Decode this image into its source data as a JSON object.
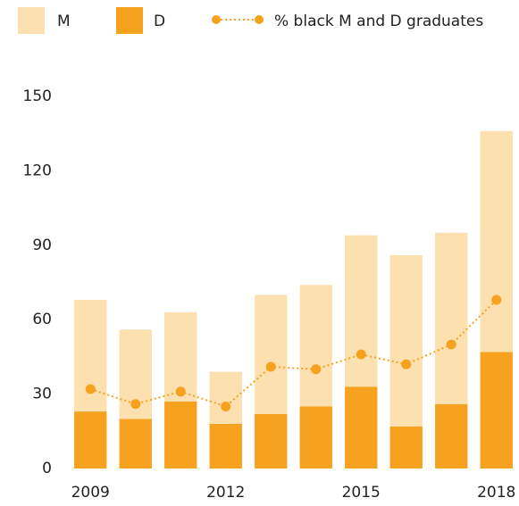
{
  "chart_data": {
    "type": "bar",
    "categories": [
      "2009",
      null,
      null,
      "2012",
      null,
      null,
      "2015",
      null,
      null,
      "2018"
    ],
    "series": [
      {
        "name": "D",
        "color": "#f7a21e",
        "values": [
          23,
          20,
          27,
          18,
          22,
          25,
          33,
          17,
          26,
          47
        ]
      },
      {
        "name": "M",
        "color": "#fde0b0",
        "values": [
          45,
          36,
          36,
          21,
          48,
          49,
          61,
          69,
          69,
          89
        ]
      },
      {
        "name": "% black M and D graduates",
        "type": "line",
        "color": "#f7a21e",
        "values": [
          32,
          26,
          31,
          25,
          41,
          40,
          46,
          42,
          50,
          68
        ]
      }
    ],
    "stacked": true,
    "ylim": [
      0,
      150
    ],
    "yticks": [
      0,
      30,
      60,
      90,
      120,
      150
    ],
    "grid": false
  }
}
